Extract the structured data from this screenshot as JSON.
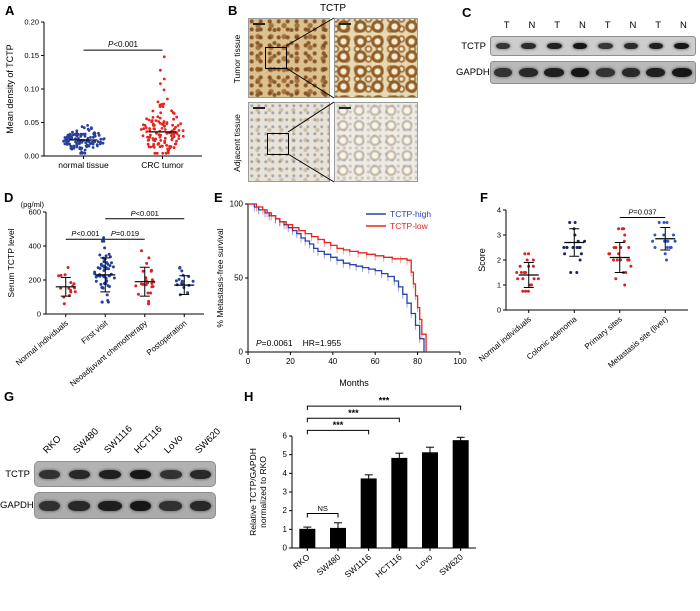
{
  "labels": {
    "A": "A",
    "B": "B",
    "C": "C",
    "D": "D",
    "E": "E",
    "F": "F",
    "G": "G",
    "H": "H"
  },
  "panelB": {
    "title": "TCTP",
    "row_labels": [
      "Tumor tissue",
      "Adjacent tissue"
    ]
  },
  "panelC": {
    "lanes": [
      "T",
      "N",
      "T",
      "N",
      "T",
      "N",
      "T",
      "N"
    ],
    "rows": [
      "TCTP",
      "GAPDH"
    ]
  },
  "panelG": {
    "lanes": [
      "RKO",
      "SW480",
      "SW1116",
      "HCT116",
      "LoVo",
      "SW620"
    ],
    "rows": [
      "TCTP",
      "GAPDH"
    ]
  },
  "chart_data": [
    {
      "id": "A",
      "type": "scatter",
      "ylabel": "Mean density of TCTP",
      "ylim": [
        0,
        0.2
      ],
      "yticks": [
        0,
        0.05,
        0.1,
        0.15,
        0.2
      ],
      "ytick_labels": [
        "0.00",
        "0.05",
        "0.10",
        "0.15",
        "0.20"
      ],
      "categories": [
        "normal tissue",
        "CRC tumor"
      ],
      "groups": [
        {
          "name": "normal tissue",
          "color": "#27409b",
          "n": 120,
          "mean": 0.024,
          "sd": 0.009,
          "min": 0.004,
          "max": 0.055,
          "seed": 11
        },
        {
          "name": "CRC tumor",
          "color": "#e8231f",
          "n": 120,
          "mean": 0.036,
          "sd": 0.02,
          "min": 0.004,
          "max": 0.105,
          "seed": 22,
          "outliers": [
            0.148,
            0.128,
            0.115,
            0.108
          ]
        }
      ],
      "mean_line": true,
      "annotations": [
        {
          "x1": 0,
          "x2": 1,
          "y": 0.158,
          "text": "P<0.001"
        }
      ]
    },
    {
      "id": "D",
      "type": "scatter",
      "ylabel": "Serum TCTP level",
      "ylabel_top": "(pg/ml)",
      "ylim": [
        0,
        600
      ],
      "yticks": [
        0,
        200,
        400,
        600
      ],
      "categories": [
        "Normal individuals",
        "First visit",
        "Neoadjuvant chemotherapy",
        "Postoperation"
      ],
      "groups": [
        {
          "name": "Normal individuals",
          "color": "#d4242a",
          "n": 16,
          "mean": 160,
          "sd": 55,
          "min": 60,
          "max": 300,
          "seed": 31
        },
        {
          "name": "First visit",
          "color": "#27409b",
          "n": 55,
          "mean": 230,
          "sd": 100,
          "min": 70,
          "max": 480,
          "seed": 32
        },
        {
          "name": "Neoadjuvant chemotherapy",
          "color": "#d4242a",
          "n": 24,
          "mean": 190,
          "sd": 85,
          "min": 60,
          "max": 380,
          "seed": 33
        },
        {
          "name": "Postoperation",
          "color": "#27409b",
          "n": 16,
          "mean": 170,
          "sd": 55,
          "min": 70,
          "max": 300,
          "seed": 34
        }
      ],
      "error_bars": true,
      "annotations": [
        {
          "x1": 0,
          "x2": 1,
          "y": 440,
          "text": "P<0.001"
        },
        {
          "x1": 1,
          "x2": 2,
          "y": 440,
          "text": "P=0.019"
        },
        {
          "x1": 1,
          "x2": 3,
          "y": 560,
          "text": "P<0.001"
        }
      ]
    },
    {
      "id": "E",
      "type": "km",
      "xlabel": "Months",
      "ylabel": "% Metastasis-free survival",
      "xlim": [
        0,
        100
      ],
      "ylim": [
        0,
        100
      ],
      "xticks": [
        0,
        20,
        40,
        60,
        80,
        100
      ],
      "yticks": [
        0,
        50,
        100
      ],
      "stats": [
        "P=0.0061",
        "HR=1.955"
      ],
      "series": [
        {
          "name": "TCTP-high",
          "color": "#2743ae",
          "steps": [
            [
              0,
              100
            ],
            [
              3,
              98
            ],
            [
              5,
              96
            ],
            [
              8,
              94
            ],
            [
              10,
              92
            ],
            [
              13,
              90
            ],
            [
              15,
              88
            ],
            [
              17,
              86
            ],
            [
              19,
              84
            ],
            [
              21,
              82
            ],
            [
              23,
              80
            ],
            [
              25,
              77
            ],
            [
              27,
              75
            ],
            [
              29,
              73
            ],
            [
              31,
              70
            ],
            [
              33,
              68
            ],
            [
              36,
              66
            ],
            [
              39,
              64
            ],
            [
              42,
              62
            ],
            [
              45,
              60
            ],
            [
              48,
              59
            ],
            [
              51,
              58
            ],
            [
              54,
              57
            ],
            [
              57,
              56
            ],
            [
              60,
              55
            ],
            [
              63,
              53
            ],
            [
              66,
              51
            ],
            [
              69,
              48
            ],
            [
              71,
              44
            ],
            [
              73,
              39
            ],
            [
              75,
              33
            ],
            [
              77,
              26
            ],
            [
              79,
              18
            ],
            [
              81,
              9
            ],
            [
              83,
              0
            ]
          ]
        },
        {
          "name": "TCTP-low",
          "color": "#e8231f",
          "steps": [
            [
              0,
              100
            ],
            [
              4,
              98
            ],
            [
              7,
              96
            ],
            [
              9,
              94
            ],
            [
              11,
              92
            ],
            [
              13,
              90
            ],
            [
              15,
              88
            ],
            [
              18,
              86
            ],
            [
              21,
              84
            ],
            [
              24,
              82
            ],
            [
              27,
              80
            ],
            [
              30,
              78
            ],
            [
              33,
              76
            ],
            [
              36,
              74
            ],
            [
              39,
              72
            ],
            [
              42,
              70
            ],
            [
              45,
              69
            ],
            [
              48,
              68
            ],
            [
              52,
              67
            ],
            [
              56,
              66
            ],
            [
              60,
              65
            ],
            [
              64,
              64
            ],
            [
              68,
              63
            ],
            [
              72,
              63
            ],
            [
              75,
              62
            ],
            [
              77,
              54
            ],
            [
              78,
              46
            ],
            [
              79,
              38
            ],
            [
              80,
              30
            ],
            [
              81,
              22
            ],
            [
              82,
              12
            ],
            [
              84,
              0
            ]
          ]
        }
      ]
    },
    {
      "id": "F",
      "type": "scatter",
      "ylabel": "Score",
      "ylim": [
        0,
        4
      ],
      "yticks": [
        0,
        1,
        2,
        3,
        4
      ],
      "categories": [
        "Normal individuals",
        "Colonic adenoma",
        "Primary sites",
        "Metastasis site (liver)"
      ],
      "groups": [
        {
          "name": "Normal individuals",
          "color": "#d4242a",
          "n": 20,
          "mean": 1.4,
          "sd": 0.5,
          "min": 0.75,
          "max": 2.25,
          "seed": 41,
          "quantize": 0.25
        },
        {
          "name": "Colonic adenoma",
          "color": "#1c2455",
          "n": 18,
          "mean": 2.7,
          "sd": 0.55,
          "min": 1.5,
          "max": 3.5,
          "seed": 42,
          "quantize": 0.25
        },
        {
          "name": "Primary sites",
          "color": "#d4242a",
          "n": 22,
          "mean": 2.1,
          "sd": 0.6,
          "min": 1.0,
          "max": 3.25,
          "seed": 43,
          "quantize": 0.25
        },
        {
          "name": "Metastasis site (liver)",
          "color": "#2f54c4",
          "n": 18,
          "mean": 2.85,
          "sd": 0.45,
          "min": 2.0,
          "max": 3.5,
          "seed": 44,
          "quantize": 0.25
        }
      ],
      "error_bars": true,
      "annotations": [
        {
          "x1": 2,
          "x2": 3,
          "y": 3.7,
          "text": "P=0.037"
        }
      ]
    },
    {
      "id": "H",
      "type": "bar",
      "ylabel_lines": [
        "Relative TCTP/GAPDH",
        "normalized to RKO"
      ],
      "ylim": [
        0,
        6
      ],
      "yticks": [
        0,
        1,
        2,
        3,
        4,
        5,
        6
      ],
      "categories": [
        "RKO",
        "SW480",
        "SW1116",
        "HCT116",
        "Lovo",
        "SW620"
      ],
      "values": [
        1.0,
        1.05,
        3.7,
        4.8,
        5.1,
        5.75
      ],
      "errors": [
        0.12,
        0.3,
        0.22,
        0.28,
        0.3,
        0.18
      ],
      "bar_color": "#000000",
      "significance": [
        {
          "x1": 0,
          "x2": 1,
          "y": 1.85,
          "label": "NS"
        },
        {
          "x1": 0,
          "x2": 2,
          "y": 6.3,
          "label": "***"
        },
        {
          "x1": 0,
          "x2": 3,
          "y": 6.95,
          "label": "***"
        },
        {
          "x1": 0,
          "x2": 5,
          "y": 7.6,
          "label": "***"
        }
      ]
    }
  ]
}
